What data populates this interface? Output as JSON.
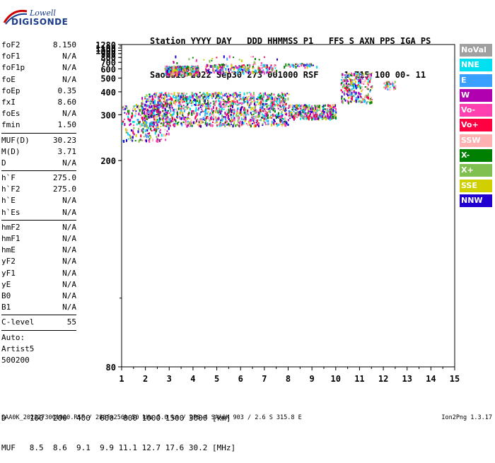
{
  "logo": {
    "brand": "Lowell",
    "product": "DIGISONDE"
  },
  "header": {
    "line1": "Station YYYY DAY   DDD HHMMSS P1   FFS S AXN PPS IGA PS",
    "line2": "SaoLuis 2022 Sep30 273 001000 RSF     1 715 100 00- 11"
  },
  "params": {
    "group1": [
      {
        "k": "foF2",
        "v": "8.150"
      },
      {
        "k": "foF1",
        "v": "N/A"
      },
      {
        "k": "foF1p",
        "v": "N/A"
      },
      {
        "k": "foE",
        "v": "N/A"
      },
      {
        "k": "foEp",
        "v": "0.35"
      },
      {
        "k": "fxI",
        "v": "8.60"
      },
      {
        "k": "foEs",
        "v": "N/A"
      },
      {
        "k": "fmin",
        "v": "1.50"
      }
    ],
    "group2": [
      {
        "k": "MUF(D)",
        "v": "30.23"
      },
      {
        "k": "M(D)",
        "v": "3.71"
      },
      {
        "k": "D",
        "v": "N/A"
      }
    ],
    "group3": [
      {
        "k": "h`F",
        "v": "275.0"
      },
      {
        "k": "h`F2",
        "v": "275.0"
      },
      {
        "k": "h`E",
        "v": "N/A"
      },
      {
        "k": "h`Es",
        "v": "N/A"
      }
    ],
    "group4": [
      {
        "k": "hmF2",
        "v": "N/A"
      },
      {
        "k": "hmF1",
        "v": "N/A"
      },
      {
        "k": "hmE",
        "v": "N/A"
      },
      {
        "k": "yF2",
        "v": "N/A"
      },
      {
        "k": "yF1",
        "v": "N/A"
      },
      {
        "k": "yE",
        "v": "N/A"
      },
      {
        "k": "B0",
        "v": "N/A"
      },
      {
        "k": "B1",
        "v": "N/A"
      }
    ],
    "clevel": {
      "k": "C-level",
      "v": "55"
    },
    "auto": [
      "Auto:",
      "Artist5",
      "500200"
    ]
  },
  "legend": [
    {
      "label": "NoVal",
      "color": "#a0a0a0"
    },
    {
      "label": "NNE",
      "color": "#00e0f0"
    },
    {
      "label": "E",
      "color": "#3aa0ff"
    },
    {
      "label": "W",
      "color": "#b000b0"
    },
    {
      "label": "Vo-",
      "color": "#ff40b0"
    },
    {
      "label": "Vo+",
      "color": "#ff0040"
    },
    {
      "label": "SSW",
      "color": "#ffb0b0"
    },
    {
      "label": "X-",
      "color": "#008000"
    },
    {
      "label": "X+",
      "color": "#80c050"
    },
    {
      "label": "SSE",
      "color": "#d0d000"
    },
    {
      "label": "NNW",
      "color": "#2000d0"
    }
  ],
  "chart_data": {
    "type": "scatter",
    "title": "",
    "xlabel": "",
    "ylabel": "",
    "xlim": [
      1,
      15
    ],
    "ylim": [
      80,
      1280
    ],
    "x_ticks": [
      "1",
      "2",
      "3",
      "4",
      "5",
      "6",
      "7",
      "8",
      "9",
      "10",
      "11",
      "12",
      "13",
      "14",
      "15"
    ],
    "y_ticks": [
      "80",
      "200",
      "300",
      "400",
      "500",
      "600",
      "700",
      "800",
      "900",
      "1000",
      "1100",
      "1280"
    ],
    "y_scale": "reciprocal",
    "clusters": [
      {
        "name": "F-trace main",
        "x0": 1.8,
        "x1": 8.0,
        "y0": 270,
        "y1": 400,
        "n": 1400
      },
      {
        "name": "F-trace tail",
        "x0": 8.0,
        "x1": 10.0,
        "y0": 290,
        "y1": 340,
        "n": 350
      },
      {
        "name": "low F-trace",
        "x0": 1.0,
        "x1": 3.0,
        "y0": 235,
        "y1": 340,
        "n": 250
      },
      {
        "name": "second-hop",
        "x0": 2.8,
        "x1": 4.2,
        "y0": 540,
        "y1": 650,
        "n": 350
      },
      {
        "name": "second-hop spread",
        "x0": 4.5,
        "x1": 7.5,
        "y0": 560,
        "y1": 680,
        "n": 220
      },
      {
        "name": "high trace",
        "x0": 10.2,
        "x1": 11.5,
        "y0": 350,
        "y1": 560,
        "n": 260
      },
      {
        "name": "NNE high",
        "x0": 12.0,
        "x1": 12.5,
        "y0": 420,
        "y1": 480,
        "n": 40
      },
      {
        "name": "upper echoes",
        "x0": 7.8,
        "x1": 9.2,
        "y0": 640,
        "y1": 690,
        "n": 40
      },
      {
        "name": "isolated",
        "x0": 3.0,
        "x1": 8.0,
        "y0": 700,
        "y1": 860,
        "n": 30
      }
    ]
  },
  "footer": {
    "d_row": "D     100  200  400  600  800 1000 1500 3000 [km]",
    "muf_row": "MUF   8.5  8.6  9.1  9.9 11.1 12.7 17.6 30.2 [MHz]",
    "file": "SAA0K_2022273001000.RSF / 280fx256h 50 kHz 5.0 km / DPS-4 SAA0K 903 / 2.6 S 315.8 E",
    "version": "Ion2Png 1.3.17"
  }
}
